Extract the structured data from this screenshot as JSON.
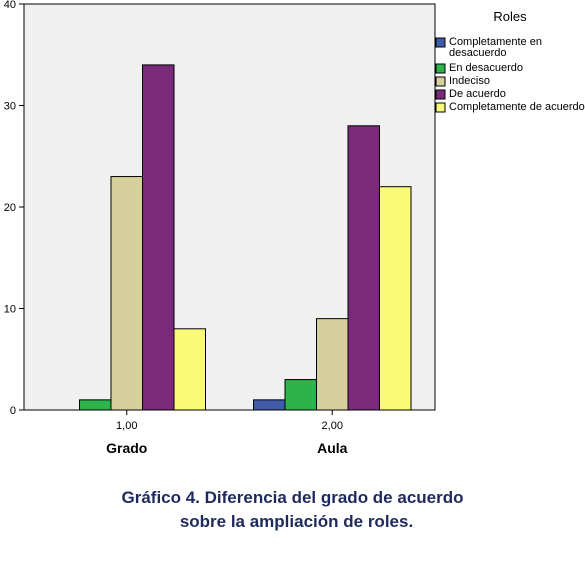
{
  "chart_data": {
    "type": "bar",
    "categories": [
      "1,00",
      "2,00"
    ],
    "group_names": [
      "Grado",
      "Aula"
    ],
    "legend_title": "Roles",
    "series": [
      {
        "name": [
          "Completamente en",
          "desacuerdo"
        ],
        "values": [
          0,
          1
        ],
        "color": "#3f5ba9"
      },
      {
        "name": [
          "En desacuerdo"
        ],
        "values": [
          1,
          3
        ],
        "color": "#2db34a"
      },
      {
        "name": [
          "Indeciso"
        ],
        "values": [
          23,
          9
        ],
        "color": "#d6d19c"
      },
      {
        "name": [
          "De acuerdo"
        ],
        "values": [
          34,
          28
        ],
        "color": "#7b2a7b"
      },
      {
        "name": [
          "Completamente de acuerdo"
        ],
        "values": [
          8,
          22
        ],
        "color": "#fafa78"
      }
    ],
    "ylim": [
      0,
      40
    ],
    "yticks": [
      0,
      10,
      20,
      30,
      40
    ],
    "grid": false,
    "legend_position": "right",
    "plot_background": "#f0f0f0"
  },
  "caption": {
    "line1": "Gráfico 4. Diferencia del grado de acuerdo",
    "line2": "sobre la ampliación de roles."
  }
}
